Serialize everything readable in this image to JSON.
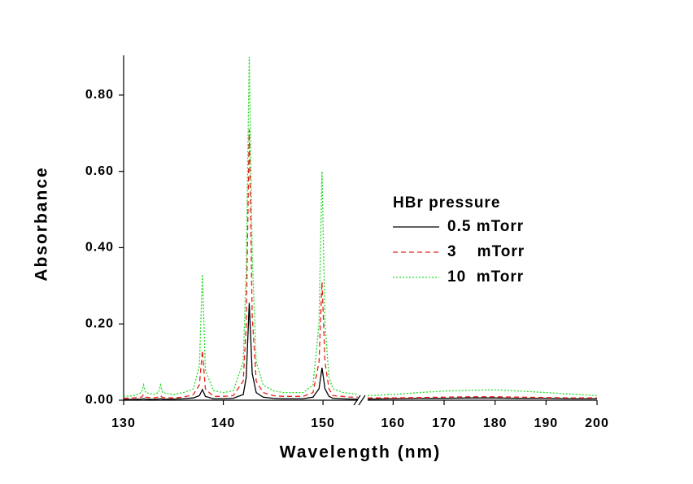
{
  "chart_data": {
    "type": "line",
    "xlabel": "Wavelength (nm)",
    "ylabel": "Absorbance",
    "legend_title": "HBr pressure",
    "legend_position": "right",
    "xlim": [
      130,
      200
    ],
    "xsegments": [
      [
        130,
        153.5
      ],
      [
        155,
        200
      ]
    ],
    "xticks": [
      130,
      140,
      150,
      160,
      170,
      180,
      190,
      200
    ],
    "ylim": [
      0,
      0.9
    ],
    "yticks": [
      {
        "value": 0,
        "label": "0.00"
      },
      {
        "value": 0.2,
        "label": "0.20"
      },
      {
        "value": 0.4,
        "label": "0.40"
      },
      {
        "value": 0.6,
        "label": "0.60"
      },
      {
        "value": 0.8,
        "label": "0.80"
      }
    ],
    "x": [
      130,
      131,
      131.8,
      132,
      132.2,
      133,
      133.5,
      133.7,
      133.9,
      135,
      136,
      137,
      137.6,
      137.9,
      138.2,
      139,
      140,
      141,
      142,
      142.3,
      142.6,
      142.9,
      143.3,
      144,
      145,
      146,
      147,
      148,
      149,
      149.6,
      149.9,
      150.2,
      150.6,
      151,
      152,
      152.7,
      153.5,
      154,
      155,
      160,
      165,
      170,
      175,
      180,
      185,
      190,
      195,
      200
    ],
    "series": [
      {
        "name": "0.5 mTorr",
        "color": "#000000",
        "dash": "none",
        "values": [
          0.002,
          0.002,
          0.003,
          0.004,
          0.003,
          0.002,
          0.003,
          0.004,
          0.003,
          0.003,
          0.004,
          0.006,
          0.012,
          0.028,
          0.01,
          0.004,
          0.004,
          0.005,
          0.015,
          0.06,
          0.255,
          0.07,
          0.02,
          0.008,
          0.005,
          0.004,
          0.004,
          0.004,
          0.008,
          0.03,
          0.085,
          0.03,
          0.01,
          0.005,
          0.004,
          0.003,
          0.003,
          null,
          0.003,
          0.004,
          0.005,
          0.005,
          0.006,
          0.006,
          0.005,
          0.005,
          0.004,
          0.004
        ]
      },
      {
        "name": "3    mTorr",
        "color": "#e8201c",
        "dash": "6,4",
        "values": [
          0.005,
          0.006,
          0.008,
          0.015,
          0.008,
          0.006,
          0.008,
          0.012,
          0.007,
          0.006,
          0.008,
          0.015,
          0.04,
          0.13,
          0.03,
          0.01,
          0.01,
          0.012,
          0.05,
          0.2,
          0.71,
          0.22,
          0.05,
          0.02,
          0.012,
          0.01,
          0.01,
          0.01,
          0.02,
          0.1,
          0.31,
          0.1,
          0.03,
          0.012,
          0.01,
          0.008,
          0.008,
          null,
          0.006,
          0.006,
          0.007,
          0.008,
          0.009,
          0.009,
          0.008,
          0.007,
          0.006,
          0.006
        ]
      },
      {
        "name": "10  mTorr",
        "color": "#22dd22",
        "dash": "2,2",
        "values": [
          0.01,
          0.012,
          0.02,
          0.04,
          0.02,
          0.015,
          0.02,
          0.04,
          0.02,
          0.015,
          0.02,
          0.03,
          0.09,
          0.33,
          0.08,
          0.025,
          0.02,
          0.025,
          0.1,
          0.35,
          0.9,
          0.38,
          0.1,
          0.04,
          0.025,
          0.02,
          0.02,
          0.02,
          0.04,
          0.2,
          0.6,
          0.2,
          0.06,
          0.03,
          0.02,
          0.018,
          0.015,
          null,
          0.012,
          0.015,
          0.02,
          0.024,
          0.026,
          0.027,
          0.024,
          0.02,
          0.016,
          0.012
        ]
      }
    ]
  }
}
